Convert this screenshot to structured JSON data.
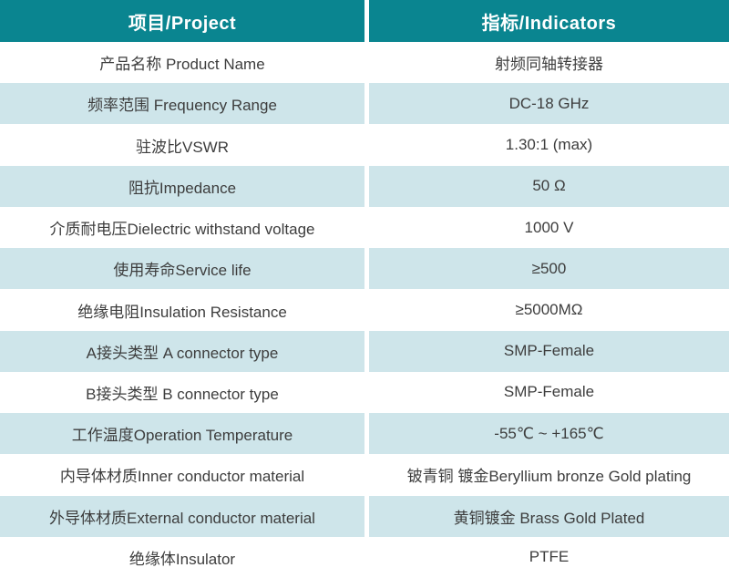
{
  "table": {
    "header": {
      "col1": "项目/Project",
      "col2": "指标/Indicators"
    },
    "rows": [
      {
        "label": "产品名称 Product Name",
        "value": "射频同轴转接器"
      },
      {
        "label": "频率范围 Frequency Range",
        "value": "DC-18 GHz"
      },
      {
        "label": "驻波比VSWR",
        "value": "1.30:1 (max)"
      },
      {
        "label": "阻抗Impedance",
        "value": "50 Ω"
      },
      {
        "label": "介质耐电压Dielectric withstand voltage",
        "value": "1000 V"
      },
      {
        "label": "使用寿命Service life",
        "value": "≥500"
      },
      {
        "label": "绝缘电阻Insulation Resistance",
        "value": "≥5000MΩ"
      },
      {
        "label": "A接头类型 A connector type",
        "value": "SMP-Female"
      },
      {
        "label": "B接头类型 B connector type",
        "value": "SMP-Female"
      },
      {
        "label": "工作温度Operation Temperature",
        "value": "-55℃ ~ +165℃"
      },
      {
        "label": "内导体材质Inner conductor material",
        "value": "铍青铜 镀金Beryllium bronze Gold plating"
      },
      {
        "label": "外导体材质External conductor material",
        "value": "黄铜镀金 Brass Gold Plated"
      },
      {
        "label": "绝缘体Insulator",
        "value": "PTFE"
      }
    ],
    "colors": {
      "header_bg": "#0a8590",
      "header_text": "#ffffff",
      "row_alt_bg": "#cee5ea",
      "row_bg": "#ffffff",
      "body_text": "#3d3d3d"
    }
  }
}
